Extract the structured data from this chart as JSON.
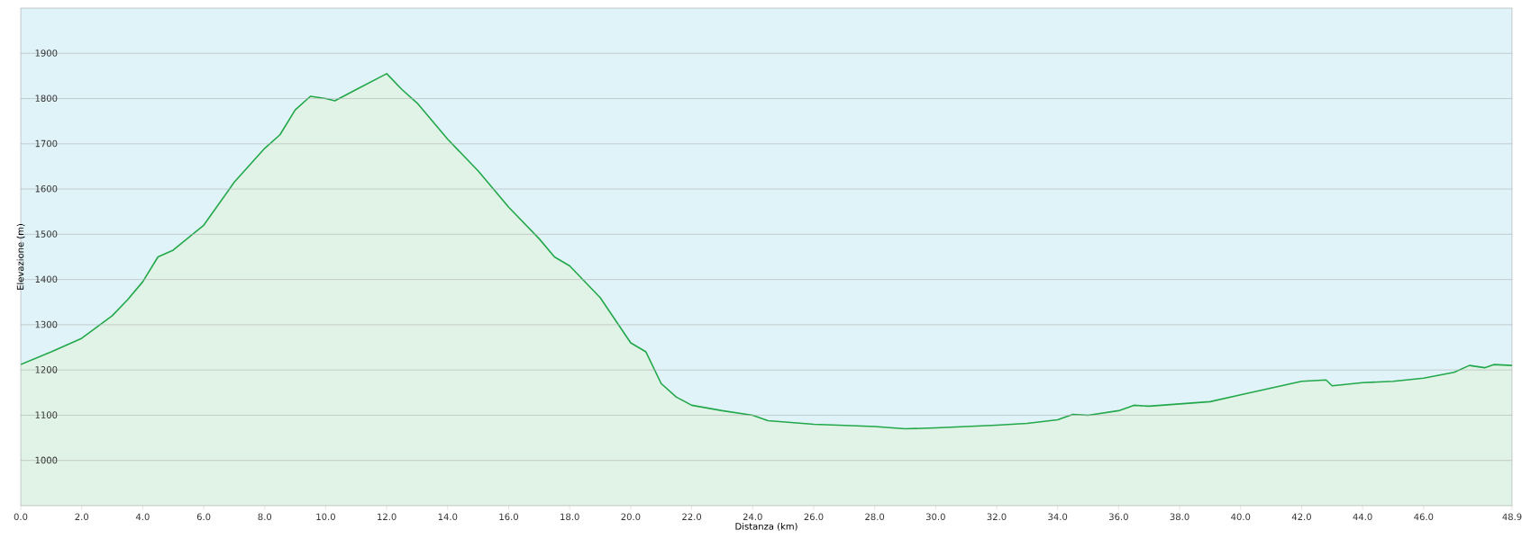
{
  "chart_data": {
    "type": "area",
    "xlabel": "Distanza  (km)",
    "ylabel": "Elevazione (m)",
    "x": [
      0,
      1,
      2,
      3,
      3.5,
      4,
      4.5,
      5,
      6,
      7,
      8,
      8.5,
      9,
      9.5,
      10,
      10.3,
      11,
      12,
      12.5,
      13,
      14,
      15,
      16,
      17,
      17.5,
      18,
      19,
      20,
      20.5,
      21,
      21.5,
      22,
      23,
      24,
      24.5,
      26,
      28,
      29,
      30,
      32,
      33,
      34,
      34.5,
      35,
      36,
      36.5,
      37,
      38,
      39,
      40,
      41,
      42,
      42.8,
      43,
      44,
      45,
      46,
      47,
      47.5,
      48,
      48.3,
      48.9
    ],
    "series": [
      {
        "color": "#22a84a",
        "values": [
          1212,
          1240,
          1270,
          1320,
          1355,
          1395,
          1450,
          1465,
          1520,
          1615,
          1690,
          1720,
          1775,
          1805,
          1800,
          1795,
          1820,
          1855,
          1820,
          1790,
          1710,
          1640,
          1560,
          1490,
          1450,
          1430,
          1360,
          1260,
          1240,
          1170,
          1140,
          1122,
          1110,
          1100,
          1088,
          1080,
          1075,
          1070,
          1072,
          1078,
          1082,
          1090,
          1102,
          1100,
          1110,
          1122,
          1120,
          1125,
          1130,
          1145,
          1160,
          1175,
          1178,
          1165,
          1172,
          1175,
          1182,
          1195,
          1210,
          1205,
          1212,
          1210
        ]
      }
    ],
    "xlim": [
      0,
      48.9
    ],
    "ylim": [
      900,
      2000
    ],
    "xticks": [
      {
        "value": 0,
        "label": "0.0"
      },
      {
        "value": 2,
        "label": "2.0"
      },
      {
        "value": 4,
        "label": "4.0"
      },
      {
        "value": 6,
        "label": "6.0"
      },
      {
        "value": 8,
        "label": "8.0"
      },
      {
        "value": 10,
        "label": "10.0"
      },
      {
        "value": 12,
        "label": "12.0"
      },
      {
        "value": 14,
        "label": "14.0"
      },
      {
        "value": 16,
        "label": "16.0"
      },
      {
        "value": 18,
        "label": "18.0"
      },
      {
        "value": 20,
        "label": "20.0"
      },
      {
        "value": 22,
        "label": "22.0"
      },
      {
        "value": 24,
        "label": "24.0"
      },
      {
        "value": 26,
        "label": "26.0"
      },
      {
        "value": 28,
        "label": "28.0"
      },
      {
        "value": 30,
        "label": "30.0"
      },
      {
        "value": 32,
        "label": "32.0"
      },
      {
        "value": 34,
        "label": "34.0"
      },
      {
        "value": 36,
        "label": "36.0"
      },
      {
        "value": 38,
        "label": "38.0"
      },
      {
        "value": 40,
        "label": "40.0"
      },
      {
        "value": 42,
        "label": "42.0"
      },
      {
        "value": 44,
        "label": "44.0"
      },
      {
        "value": 46,
        "label": "46.0"
      },
      {
        "value": 48.9,
        "label": "48.9"
      }
    ],
    "yticks": [
      1000,
      1100,
      1200,
      1300,
      1400,
      1500,
      1600,
      1700,
      1800,
      1900
    ],
    "grid": "y"
  }
}
